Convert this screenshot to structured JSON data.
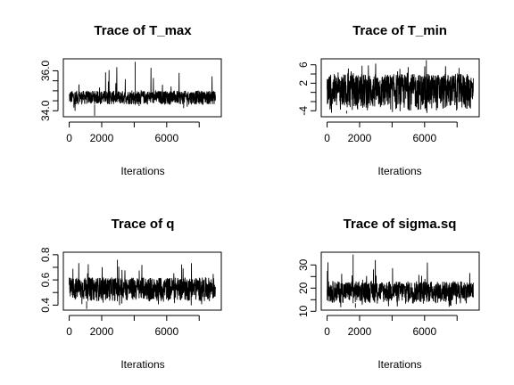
{
  "chart_data": [
    {
      "type": "line",
      "title": "Trace of T_max",
      "xlabel": "Iterations",
      "ylabel": "",
      "x_range": [
        0,
        9000
      ],
      "xticks": [
        0,
        2000,
        6000
      ],
      "ylim": [
        33.7,
        36.6
      ],
      "yticks": [
        "34.0",
        "36.0"
      ],
      "y_minor_ticks": [
        34.5,
        35.0,
        35.5
      ],
      "series": [
        {
          "trace_summary": {
            "baseline": 34.3,
            "center": 34.6,
            "upper_band": 35.0,
            "max_spike": 36.45,
            "min_spike": 33.75
          }
        }
      ]
    },
    {
      "type": "line",
      "title": "Trace of T_min",
      "xlabel": "Iterations",
      "ylabel": "",
      "x_range": [
        0,
        9000
      ],
      "xticks": [
        0,
        2000,
        6000
      ],
      "ylim": [
        -5.3,
        7.3
      ],
      "yticks": [
        "-4",
        "2",
        "6"
      ],
      "y_minor_ticks": [
        -2,
        0,
        4
      ],
      "series": [
        {
          "trace_summary": {
            "baseline": -4.0,
            "center": 0.0,
            "upper_band": 4.0,
            "max_spike": 7.0,
            "min_spike": -4.6
          }
        }
      ]
    },
    {
      "type": "line",
      "title": "Trace of q",
      "xlabel": "Iterations",
      "ylabel": "",
      "x_range": [
        0,
        9000
      ],
      "xticks": [
        0,
        2000,
        6000
      ],
      "ylim": [
        0.36,
        0.82
      ],
      "yticks": [
        "0.4",
        "0.6",
        "0.8"
      ],
      "y_minor_ticks": [
        0.5,
        0.7
      ],
      "series": [
        {
          "trace_summary": {
            "baseline": 0.43,
            "center": 0.53,
            "upper_band": 0.62,
            "max_spike": 0.76,
            "min_spike": 0.37
          }
        }
      ]
    },
    {
      "type": "line",
      "title": "Trace of sigma.sq",
      "xlabel": "Iterations",
      "ylabel": "",
      "x_range": [
        0,
        9000
      ],
      "xticks": [
        0,
        2000,
        6000
      ],
      "ylim": [
        10.5,
        35.5
      ],
      "yticks": [
        "10",
        "20",
        "30"
      ],
      "y_minor_ticks": [
        15,
        25
      ],
      "series": [
        {
          "trace_summary": {
            "baseline": 13.5,
            "center": 18.5,
            "upper_band": 23,
            "max_spike": 34.5,
            "min_spike": 11.5
          }
        }
      ]
    }
  ]
}
